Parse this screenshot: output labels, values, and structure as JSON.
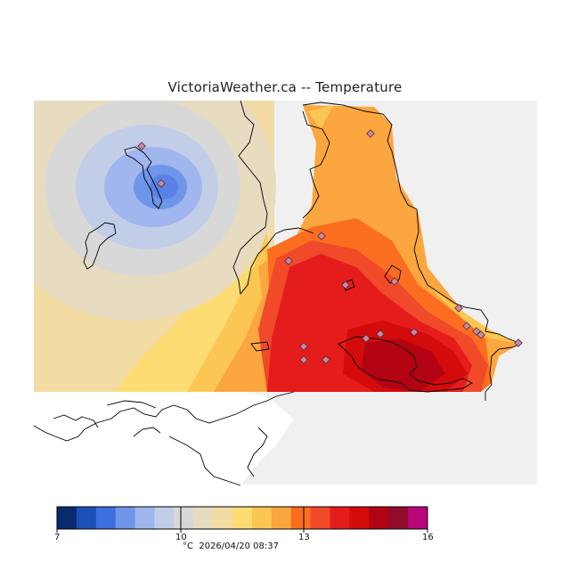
{
  "title": "VictoriaWeather.ca -- Temperature",
  "legend": {
    "ticks": [
      "7",
      "10",
      "13",
      "16"
    ],
    "colors": [
      "#0a2a6e",
      "#1d4fb8",
      "#3d6ee0",
      "#6f95e8",
      "#9fb6ee",
      "#c2cde8",
      "#d8d8d8",
      "#e8dcc0",
      "#f3dca4",
      "#fddc74",
      "#fcc653",
      "#fba63e",
      "#fb6e1f",
      "#f04a2a",
      "#e51c1c",
      "#d40b0b",
      "#b30312",
      "#920a2c",
      "#b80778"
    ]
  },
  "units": "°C",
  "timestamp": "2026/04/20 08:37",
  "colors": {
    "no_data": "#f0f0f0",
    "land_white": "#ffffff",
    "coast": "#000000",
    "station_marker": "#c58aa5"
  }
}
